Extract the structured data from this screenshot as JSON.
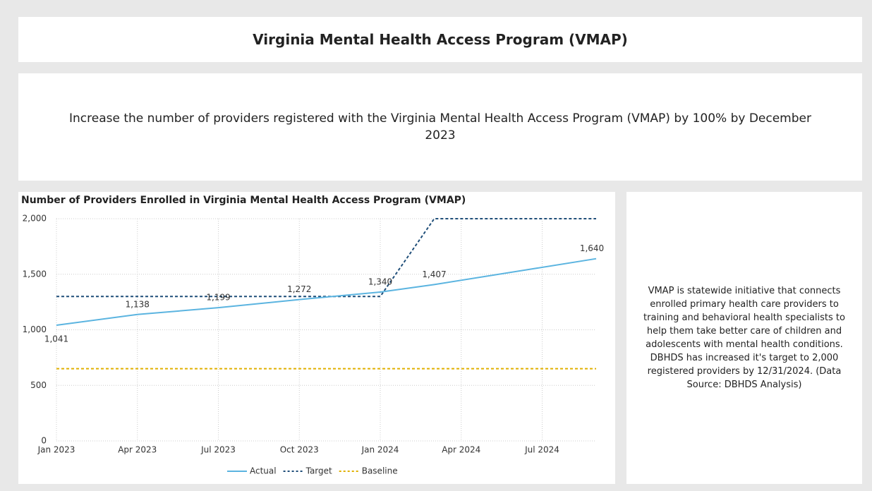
{
  "header": {
    "title": "Virginia Mental Health Access Program (VMAP)"
  },
  "goal": "Increase the number of providers registered with the Virginia Mental Health Access Program (VMAP) by 100% by December 2023",
  "chart_data": {
    "type": "line",
    "title": "Number of Providers Enrolled in Virginia Mental Health Access Program (VMAP)",
    "x": [
      "2023-01",
      "2023-04",
      "2023-07",
      "2023-10",
      "2024-01",
      "2024-03",
      "2024-09"
    ],
    "xlim": [
      "2023-01",
      "2024-09"
    ],
    "xticks": [
      {
        "value": "2023-01",
        "label": "Jan 2023"
      },
      {
        "value": "2023-04",
        "label": "Apr 2023"
      },
      {
        "value": "2023-07",
        "label": "Jul 2023"
      },
      {
        "value": "2023-10",
        "label": "Oct 2023"
      },
      {
        "value": "2024-01",
        "label": "Jan 2024"
      },
      {
        "value": "2024-04",
        "label": "Apr 2024"
      },
      {
        "value": "2024-07",
        "label": "Jul 2024"
      }
    ],
    "ylim": [
      0,
      2000
    ],
    "yticks": [
      0,
      500,
      {
        "value": 1000,
        "label": "1,000"
      },
      {
        "value": 1500,
        "label": "1,500"
      },
      {
        "value": 2000,
        "label": "2,000"
      }
    ],
    "grid": true,
    "legend": "bottom",
    "series": [
      {
        "name": "Actual",
        "color": "#5bb4e0",
        "dash": false,
        "values": [
          1041,
          1138,
          1199,
          1272,
          1340,
          1407,
          1640
        ],
        "value_labels": [
          "1,041",
          "1,138",
          "1,199",
          "1,272",
          "1,340",
          "1,407",
          "1,640"
        ]
      },
      {
        "name": "Target",
        "color": "#1f4e79",
        "dash": true,
        "values": [
          1300,
          1300,
          1300,
          1300,
          1300,
          2000,
          2000
        ]
      },
      {
        "name": "Baseline",
        "color": "#e0b000",
        "dash": true,
        "values": [
          650,
          650,
          650,
          650,
          650,
          650,
          650
        ]
      }
    ]
  },
  "description": "VMAP is statewide initiative that connects enrolled primary health care providers to training and behavioral health specialists to help them take better care of children and adolescents with mental health conditions. DBHDS has increased it's target to 2,000 registered providers by 12/31/2024. (Data Source: DBHDS Analysis)"
}
